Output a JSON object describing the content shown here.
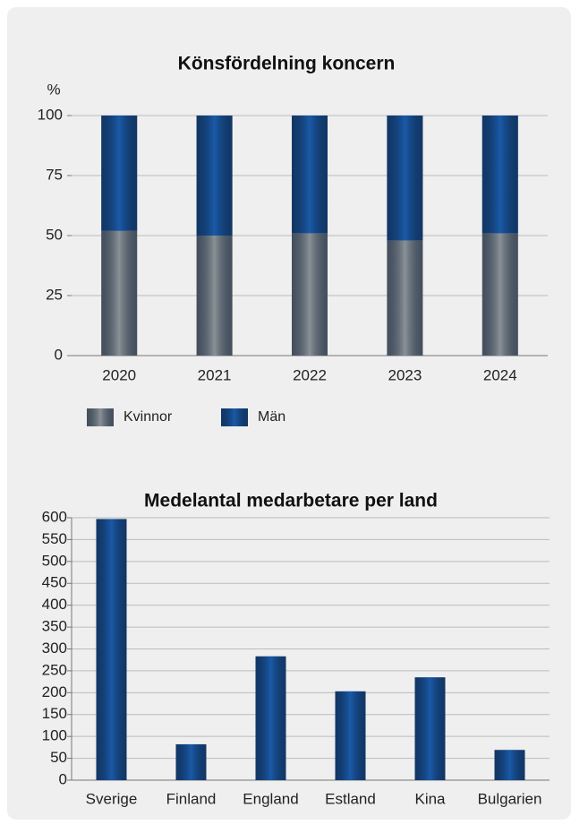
{
  "chart_data": [
    {
      "type": "stacked_bar",
      "title": "Könsfördelning koncern",
      "y_label": "%",
      "categories": [
        "2020",
        "2021",
        "2022",
        "2023",
        "2024"
      ],
      "series": [
        {
          "name": "Kvinnor",
          "color": "#8a9196",
          "values": [
            52,
            50,
            51,
            48,
            51
          ]
        },
        {
          "name": "Män",
          "color": "#1a5aa8",
          "values": [
            48,
            50,
            49,
            52,
            49
          ]
        }
      ],
      "ylim": [
        0,
        100
      ],
      "yticks": [
        0,
        25,
        50,
        75,
        100
      ],
      "grid": true,
      "legend": "bottom"
    },
    {
      "type": "bar",
      "title": "Medelantal medarbetare per land",
      "categories": [
        "Sverige",
        "Finland",
        "England",
        "Estland",
        "Kina",
        "Bulgarien"
      ],
      "values": [
        597,
        82,
        283,
        203,
        235,
        69
      ],
      "color": "#1a5aa8",
      "ylim": [
        0,
        600
      ],
      "yticks": [
        0,
        50,
        100,
        150,
        200,
        250,
        300,
        350,
        400,
        450,
        500,
        550,
        600
      ],
      "grid": true
    }
  ]
}
